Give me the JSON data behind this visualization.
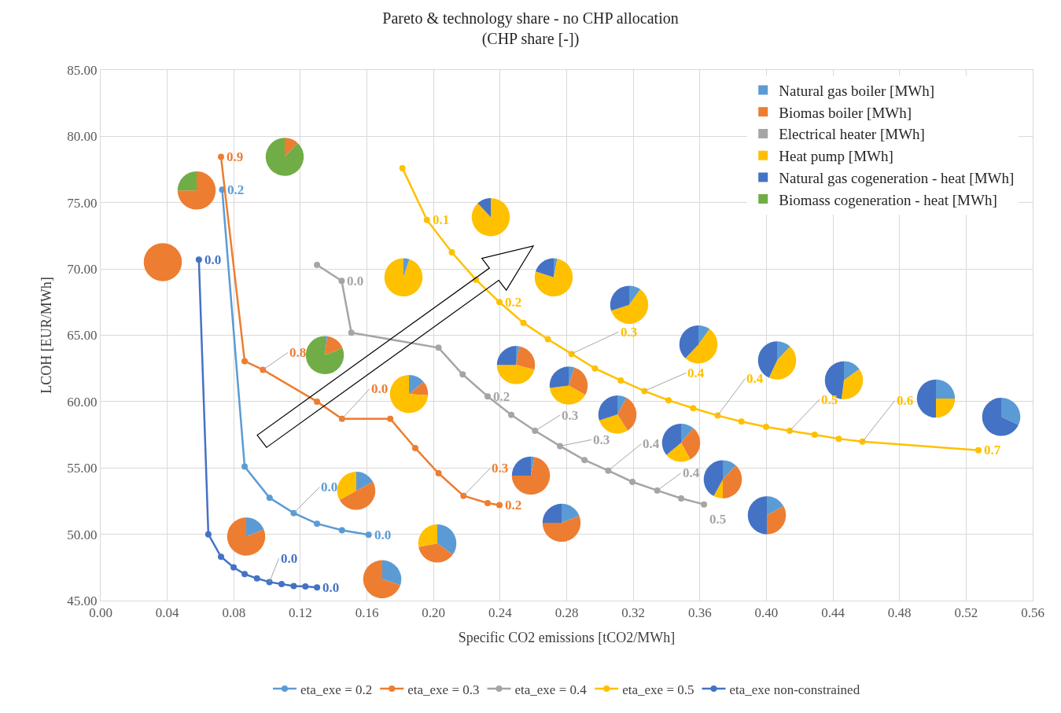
{
  "chart_data": [
    {
      "type": "line",
      "title": "Pareto & technology share - no CHP allocation\n(CHP share [-])",
      "xlabel": "Specific CO2 emissions [tCO2/MWh]",
      "ylabel": "LCOH [EUR/MWh]",
      "xlim": [
        0,
        0.56
      ],
      "ylim": [
        45,
        85
      ],
      "xticks": [
        {
          "value": 0,
          "label": "0.00"
        },
        {
          "value": 0.04,
          "label": "0.04"
        },
        {
          "value": 0.08,
          "label": "0.08"
        },
        {
          "value": 0.12,
          "label": "0.12"
        },
        {
          "value": 0.16,
          "label": "0.16"
        },
        {
          "value": 0.2,
          "label": "0.20"
        },
        {
          "value": 0.24,
          "label": "0.24"
        },
        {
          "value": 0.28,
          "label": "0.28"
        },
        {
          "value": 0.32,
          "label": "0.32"
        },
        {
          "value": 0.36,
          "label": "0.36"
        },
        {
          "value": 0.4,
          "label": "0.40"
        },
        {
          "value": 0.44,
          "label": "0.44"
        },
        {
          "value": 0.48,
          "label": "0.48"
        },
        {
          "value": 0.52,
          "label": "0.52"
        },
        {
          "value": 0.56,
          "label": "0.56"
        }
      ],
      "yticks": [
        {
          "value": 45,
          "label": "45.00"
        },
        {
          "value": 50,
          "label": "50.00"
        },
        {
          "value": 55,
          "label": "55.00"
        },
        {
          "value": 60,
          "label": "60.00"
        },
        {
          "value": 65,
          "label": "65.00"
        },
        {
          "value": 70,
          "label": "70.00"
        },
        {
          "value": 75,
          "label": "75.00"
        },
        {
          "value": 80,
          "label": "80.00"
        },
        {
          "value": 85,
          "label": "85.00"
        }
      ],
      "grid": true,
      "legend": "bottom",
      "marker": "circle",
      "line_style": "solid",
      "series": [
        {
          "name": "eta_exe = 0.2",
          "color": "#5b9bd5",
          "x": [
            0.073,
            0.0865,
            0.1015,
            0.116,
            0.13,
            0.145,
            0.161
          ],
          "values": [
            75.98,
            55.1,
            52.75,
            51.6,
            50.8,
            50.3,
            49.96
          ]
        },
        {
          "name": "eta_exe = 0.3",
          "color": "#ed7d31",
          "x": [
            0.0723,
            0.0865,
            0.0975,
            0.13,
            0.145,
            0.174,
            0.189,
            0.203,
            0.218,
            0.2325,
            0.2396
          ],
          "values": [
            78.45,
            63.05,
            62.4,
            60.0,
            58.7,
            58.7,
            56.5,
            54.6,
            52.9,
            52.35,
            52.2
          ]
        },
        {
          "name": "eta_exe = 0.4",
          "color": "#a5a5a5",
          "x": [
            0.13,
            0.1448,
            0.1506,
            0.203,
            0.2175,
            0.2325,
            0.2467,
            0.261,
            0.276,
            0.2907,
            0.305,
            0.3195,
            0.3344,
            0.3488,
            0.3625
          ],
          "values": [
            70.3,
            69.1,
            65.2,
            64.06,
            62.05,
            60.4,
            59.0,
            57.8,
            56.65,
            55.6,
            54.8,
            53.95,
            53.3,
            52.7,
            52.25
          ]
        },
        {
          "name": "eta_exe = 0.5",
          "color": "#ffc000",
          "x": [
            0.1813,
            0.196,
            0.211,
            0.2254,
            0.2396,
            0.254,
            0.2687,
            0.2829,
            0.297,
            0.3125,
            0.3267,
            0.3412,
            0.356,
            0.3707,
            0.385,
            0.3998,
            0.414,
            0.429,
            0.4435,
            0.4577,
            0.5274
          ],
          "values": [
            77.6,
            73.7,
            71.25,
            69.2,
            67.5,
            65.94,
            64.7,
            63.6,
            62.5,
            61.6,
            60.8,
            60.1,
            59.5,
            58.95,
            58.5,
            58.1,
            57.8,
            57.5,
            57.2,
            56.98,
            56.34
          ]
        },
        {
          "name": "eta_exe non-constrained",
          "color": "#4472c4",
          "x": [
            0.059,
            0.0647,
            0.0723,
            0.0799,
            0.0865,
            0.0939,
            0.1014,
            0.1087,
            0.116,
            0.123,
            0.13
          ],
          "values": [
            70.7,
            50.0,
            48.3,
            47.5,
            47.0,
            46.67,
            46.4,
            46.25,
            46.1,
            46.06,
            46.0
          ]
        }
      ],
      "annotations": [
        {
          "text": "0.2",
          "x": 0.073,
          "y": 75.98
        },
        {
          "text": "0.0",
          "x": 0.116,
          "y": 51.6
        },
        {
          "text": "0.0",
          "x": 0.161,
          "y": 49.96
        },
        {
          "text": "0.9",
          "x": 0.0723,
          "y": 78.45
        },
        {
          "text": "0.8",
          "x": 0.0975,
          "y": 62.4
        },
        {
          "text": "0.0",
          "x": 0.145,
          "y": 58.7
        },
        {
          "text": "0.3",
          "x": 0.218,
          "y": 52.9
        },
        {
          "text": "0.2",
          "x": 0.2396,
          "y": 52.2
        },
        {
          "text": "0.0",
          "x": 0.1448,
          "y": 69.1
        },
        {
          "text": "0.2",
          "x": 0.2325,
          "y": 60.4
        },
        {
          "text": "0.3",
          "x": 0.261,
          "y": 57.8
        },
        {
          "text": "0.3",
          "x": 0.276,
          "y": 56.65
        },
        {
          "text": "0.4",
          "x": 0.305,
          "y": 54.8
        },
        {
          "text": "0.4",
          "x": 0.3344,
          "y": 53.3
        },
        {
          "text": "0.5",
          "x": 0.3625,
          "y": 52.25
        },
        {
          "text": "0.1",
          "x": 0.196,
          "y": 73.7
        },
        {
          "text": "0.2",
          "x": 0.2396,
          "y": 67.5
        },
        {
          "text": "0.3",
          "x": 0.2829,
          "y": 63.6
        },
        {
          "text": "0.4",
          "x": 0.3267,
          "y": 60.8
        },
        {
          "text": "0.4",
          "x": 0.3707,
          "y": 58.95
        },
        {
          "text": "0.5",
          "x": 0.414,
          "y": 57.8
        },
        {
          "text": "0.6",
          "x": 0.4577,
          "y": 56.98
        },
        {
          "text": "0.7",
          "x": 0.5274,
          "y": 56.34
        },
        {
          "text": "0.0",
          "x": 0.059,
          "y": 70.7
        },
        {
          "text": "0.0",
          "x": 0.1014,
          "y": 46.4
        },
        {
          "text": "0.0",
          "x": 0.13,
          "y": 46.0
        }
      ]
    },
    {
      "type": "pie",
      "legend": "top right",
      "categories": [
        "Natural gas boiler [MWh]",
        "Biomas boiler [MWh]",
        "Electrical heater [MWh]",
        "Heat pump [MWh]",
        "Natural gas cogeneration - heat [MWh]",
        "Biomass cogeneration - heat [MWh]"
      ],
      "colors": [
        "#5b9bd5",
        "#ed7d31",
        "#a5a5a5",
        "#ffc000",
        "#4472c4",
        "#70ad47"
      ],
      "values": [
        0,
        100,
        0,
        0,
        0,
        0
      ]
    },
    {
      "type": "pie",
      "categories": [
        null,
        null,
        null,
        null,
        null,
        null
      ],
      "colors": [
        "#5b9bd5",
        "#ed7d31",
        "#a5a5a5",
        "#ffc000",
        "#4472c4",
        "#70ad47"
      ],
      "values": [
        0,
        75,
        0,
        0,
        0,
        25
      ]
    },
    {
      "type": "pie",
      "categories": [
        null,
        null,
        null,
        null,
        null,
        null
      ],
      "colors": [
        "#5b9bd5",
        "#ed7d31",
        "#a5a5a5",
        "#ffc000",
        "#4472c4",
        "#70ad47"
      ],
      "values": [
        0,
        12,
        0,
        0,
        0,
        88
      ]
    },
    {
      "type": "pie",
      "categories": [
        null,
        null,
        null,
        null,
        null,
        null
      ],
      "colors": [
        "#5b9bd5",
        "#ed7d31",
        "#a5a5a5",
        "#ffc000",
        "#4472c4",
        "#70ad47"
      ],
      "values": [
        2,
        17,
        0,
        0,
        0,
        81
      ]
    },
    {
      "type": "pie",
      "categories": [
        null,
        null,
        null,
        null,
        null,
        null
      ],
      "colors": [
        "#5b9bd5",
        "#ed7d31",
        "#a5a5a5",
        "#ffc000",
        "#4472c4",
        "#70ad47"
      ],
      "values": [
        5,
        0,
        0,
        95,
        0,
        0
      ]
    },
    {
      "type": "pie",
      "categories": [
        null,
        null,
        null,
        null,
        null,
        null
      ],
      "colors": [
        "#5b9bd5",
        "#ed7d31",
        "#a5a5a5",
        "#ffc000",
        "#4472c4",
        "#70ad47"
      ],
      "values": [
        0,
        0,
        0,
        88,
        12,
        0
      ]
    },
    {
      "type": "pie",
      "categories": [
        null,
        null,
        null,
        null,
        null,
        null
      ],
      "colors": [
        "#5b9bd5",
        "#ed7d31",
        "#a5a5a5",
        "#ffc000",
        "#4472c4",
        "#70ad47"
      ],
      "values": [
        3,
        0,
        0,
        77,
        20,
        0
      ]
    },
    {
      "type": "pie",
      "categories": [
        null,
        null,
        null,
        null,
        null,
        null
      ],
      "colors": [
        "#5b9bd5",
        "#ed7d31",
        "#a5a5a5",
        "#ffc000",
        "#4472c4",
        "#70ad47"
      ],
      "values": [
        10,
        0,
        0,
        60,
        30,
        0
      ]
    },
    {
      "type": "pie",
      "categories": [
        null,
        null,
        null,
        null,
        null,
        null
      ],
      "colors": [
        "#5b9bd5",
        "#ed7d31",
        "#a5a5a5",
        "#ffc000",
        "#4472c4",
        "#70ad47"
      ],
      "values": [
        10,
        0,
        0,
        52,
        38,
        0
      ]
    },
    {
      "type": "pie",
      "categories": [
        null,
        null,
        null,
        null,
        null,
        null
      ],
      "colors": [
        "#5b9bd5",
        "#ed7d31",
        "#a5a5a5",
        "#ffc000",
        "#4472c4",
        "#70ad47"
      ],
      "values": [
        12,
        0,
        0,
        45,
        43,
        0
      ]
    },
    {
      "type": "pie",
      "categories": [
        null,
        null,
        null,
        null,
        null,
        null
      ],
      "colors": [
        "#5b9bd5",
        "#ed7d31",
        "#a5a5a5",
        "#ffc000",
        "#4472c4",
        "#70ad47"
      ],
      "values": [
        15,
        0,
        0,
        37,
        48,
        0
      ]
    },
    {
      "type": "pie",
      "categories": [
        null,
        null,
        null,
        null,
        null,
        null
      ],
      "colors": [
        "#5b9bd5",
        "#ed7d31",
        "#a5a5a5",
        "#ffc000",
        "#4472c4",
        "#70ad47"
      ],
      "values": [
        25,
        0,
        0,
        25,
        50,
        0
      ]
    },
    {
      "type": "pie",
      "categories": [
        null,
        null,
        null,
        null,
        null,
        null
      ],
      "colors": [
        "#5b9bd5",
        "#ed7d31",
        "#a5a5a5",
        "#ffc000",
        "#4472c4",
        "#70ad47"
      ],
      "values": [
        32,
        0,
        0,
        0,
        68,
        0
      ]
    },
    {
      "type": "pie",
      "categories": [
        null,
        null,
        null,
        null,
        null,
        null
      ],
      "colors": [
        "#5b9bd5",
        "#ed7d31",
        "#a5a5a5",
        "#ffc000",
        "#4472c4",
        "#70ad47"
      ],
      "values": [
        14,
        12,
        0,
        74,
        0,
        0
      ]
    },
    {
      "type": "pie",
      "categories": [
        null,
        null,
        null,
        null,
        null,
        null
      ],
      "colors": [
        "#5b9bd5",
        "#ed7d31",
        "#a5a5a5",
        "#ffc000",
        "#4472c4",
        "#70ad47"
      ],
      "values": [
        3,
        26,
        0,
        46,
        25,
        0
      ]
    },
    {
      "type": "pie",
      "categories": [
        null,
        null,
        null,
        null,
        null,
        null
      ],
      "colors": [
        "#5b9bd5",
        "#ed7d31",
        "#a5a5a5",
        "#ffc000",
        "#4472c4",
        "#70ad47"
      ],
      "values": [
        5,
        28,
        0,
        40,
        27,
        0
      ]
    },
    {
      "type": "pie",
      "categories": [
        null,
        null,
        null,
        null,
        null,
        null
      ],
      "colors": [
        "#5b9bd5",
        "#ed7d31",
        "#a5a5a5",
        "#ffc000",
        "#4472c4",
        "#70ad47"
      ],
      "values": [
        8,
        33,
        0,
        29,
        30,
        0
      ]
    },
    {
      "type": "pie",
      "categories": [
        null,
        null,
        null,
        null,
        null,
        null
      ],
      "colors": [
        "#5b9bd5",
        "#ed7d31",
        "#a5a5a5",
        "#ffc000",
        "#4472c4",
        "#70ad47"
      ],
      "values": [
        11,
        31,
        0,
        22,
        36,
        0
      ]
    },
    {
      "type": "pie",
      "categories": [
        null,
        null,
        null,
        null,
        null,
        null
      ],
      "colors": [
        "#5b9bd5",
        "#ed7d31",
        "#a5a5a5",
        "#ffc000",
        "#4472c4",
        "#70ad47"
      ],
      "values": [
        12,
        38,
        0,
        8,
        42,
        0
      ]
    },
    {
      "type": "pie",
      "categories": [
        null,
        null,
        null,
        null,
        null,
        null
      ],
      "colors": [
        "#5b9bd5",
        "#ed7d31",
        "#a5a5a5",
        "#ffc000",
        "#4472c4",
        "#70ad47"
      ],
      "values": [
        17,
        33,
        0,
        0,
        50,
        0
      ]
    },
    {
      "type": "pie",
      "categories": [
        null,
        null,
        null,
        null,
        null,
        null
      ],
      "colors": [
        "#5b9bd5",
        "#ed7d31",
        "#a5a5a5",
        "#ffc000",
        "#4472c4",
        "#70ad47"
      ],
      "values": [
        3,
        72,
        0,
        0,
        25,
        0
      ]
    },
    {
      "type": "pie",
      "categories": [
        null,
        null,
        null,
        null,
        null,
        null
      ],
      "colors": [
        "#5b9bd5",
        "#ed7d31",
        "#a5a5a5",
        "#ffc000",
        "#4472c4",
        "#70ad47"
      ],
      "values": [
        19,
        56,
        0,
        0,
        25,
        0
      ]
    },
    {
      "type": "pie",
      "categories": [
        null,
        null,
        null,
        null,
        null,
        null
      ],
      "colors": [
        "#5b9bd5",
        "#ed7d31",
        "#a5a5a5",
        "#ffc000",
        "#4472c4",
        "#70ad47"
      ],
      "values": [
        17,
        50,
        0,
        33,
        0,
        0
      ]
    },
    {
      "type": "pie",
      "categories": [
        null,
        null,
        null,
        null,
        null,
        null
      ],
      "colors": [
        "#5b9bd5",
        "#ed7d31",
        "#a5a5a5",
        "#ffc000",
        "#4472c4",
        "#70ad47"
      ],
      "values": [
        19,
        81,
        0,
        0,
        0,
        0
      ]
    },
    {
      "type": "pie",
      "categories": [
        null,
        null,
        null,
        null,
        null,
        null
      ],
      "colors": [
        "#5b9bd5",
        "#ed7d31",
        "#a5a5a5",
        "#ffc000",
        "#4472c4",
        "#70ad47"
      ],
      "values": [
        35,
        37,
        0,
        28,
        0,
        0
      ]
    },
    {
      "type": "pie",
      "categories": [
        null,
        null,
        null,
        null,
        null,
        null
      ],
      "colors": [
        "#5b9bd5",
        "#ed7d31",
        "#a5a5a5",
        "#ffc000",
        "#4472c4",
        "#70ad47"
      ],
      "values": [
        30,
        70,
        0,
        0,
        0,
        0
      ]
    }
  ]
}
